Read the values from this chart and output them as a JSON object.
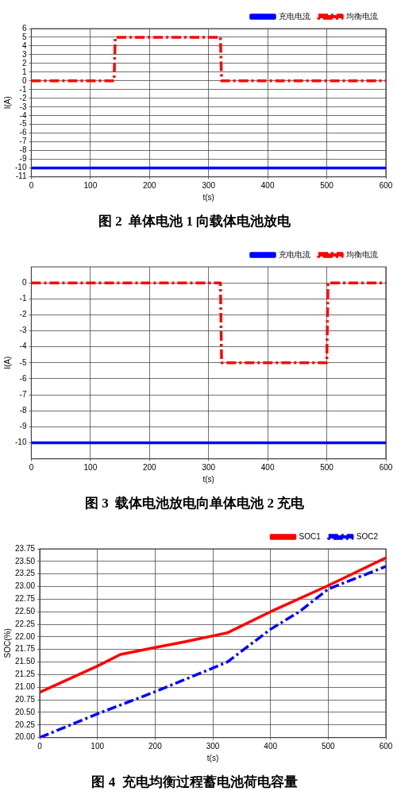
{
  "chart_data": [
    {
      "type": "line",
      "title": "图 2  单体电池 1 向载体电池放电",
      "xlabel": "t(s)",
      "ylabel": "I(A)",
      "xlim": [
        0,
        600
      ],
      "xticks": [
        0,
        100,
        200,
        300,
        400,
        500,
        600
      ],
      "ylim": [
        -11,
        6
      ],
      "yticks": [
        -11,
        -10,
        -9,
        -8,
        -7,
        -6,
        -5,
        -4,
        -3,
        -2,
        -1,
        0,
        1,
        2,
        3,
        4,
        5,
        6
      ],
      "grid": true,
      "legend": "top right",
      "marker": "none",
      "series": [
        {
          "name": "充电电流",
          "color": "#0000ff",
          "line_style": "solid",
          "x": [
            0,
            600
          ],
          "values": [
            -10,
            -10
          ]
        },
        {
          "name": "均衡电流",
          "color": "#ff0000",
          "line_style": "dashed",
          "x": [
            0,
            140,
            142,
            320,
            322,
            600
          ],
          "values": [
            0,
            0,
            5,
            5,
            0,
            0
          ]
        }
      ]
    },
    {
      "type": "line",
      "title": "图 3  载体电池放电向单体电池 2 充电",
      "xlabel": "t(s)",
      "ylabel": "I(A)",
      "xlim": [
        0,
        600
      ],
      "xticks": [
        0,
        100,
        200,
        300,
        400,
        500,
        600
      ],
      "ylim": [
        -11,
        1
      ],
      "yticks": [
        -10,
        -9,
        -8,
        -7,
        -6,
        -5,
        -4,
        -3,
        -2,
        -1,
        0
      ],
      "grid": true,
      "legend": "top right",
      "marker": "none",
      "series": [
        {
          "name": "充电电流",
          "color": "#0000ff",
          "line_style": "solid",
          "x": [
            0,
            600
          ],
          "values": [
            -10,
            -10
          ]
        },
        {
          "name": "均衡电流",
          "color": "#ff0000",
          "line_style": "dashed",
          "x": [
            0,
            320,
            322,
            500,
            502,
            600
          ],
          "values": [
            0,
            0,
            -5,
            -5,
            0,
            0
          ]
        }
      ]
    },
    {
      "type": "line",
      "title": "图 4  充电均衡过程蓄电池荷电容量",
      "xlabel": "t(s)",
      "ylabel": "SOC(%)",
      "xlim": [
        0,
        600
      ],
      "xticks": [
        0,
        100,
        200,
        300,
        400,
        500,
        600
      ],
      "ylim": [
        20,
        23.75
      ],
      "yticks": [
        {
          "value": 20,
          "label": "20.00"
        },
        {
          "value": 20.25,
          "label": "20.25"
        },
        {
          "value": 20.5,
          "label": "20.50"
        },
        {
          "value": 20.75,
          "label": "20.75"
        },
        {
          "value": 21,
          "label": "21.00"
        },
        {
          "value": 21.25,
          "label": "21.25"
        },
        {
          "value": 21.5,
          "label": "21.50"
        },
        {
          "value": 21.75,
          "label": "21.75"
        },
        {
          "value": 22,
          "label": "22.00"
        },
        {
          "value": 22.25,
          "label": "22.25"
        },
        {
          "value": 22.5,
          "label": "22.50"
        },
        {
          "value": 22.75,
          "label": "22.75"
        },
        {
          "value": 23,
          "label": "23.00"
        },
        {
          "value": 23.25,
          "label": "23.25"
        },
        {
          "value": 23.5,
          "label": "23.50"
        },
        {
          "value": 23.75,
          "label": "23.75"
        }
      ],
      "grid": true,
      "legend": "top right",
      "marker": "none",
      "series": [
        {
          "name": "SOC1",
          "color": "#ff0000",
          "line_style": "solid",
          "x": [
            0,
            100,
            140,
            200,
            250,
            300,
            325,
            400,
            500,
            600
          ],
          "values": [
            20.9,
            21.42,
            21.65,
            21.79,
            21.9,
            22.02,
            22.08,
            22.5,
            23.02,
            23.57
          ]
        },
        {
          "name": "SOC2",
          "color": "#0000ff",
          "line_style": "dashed",
          "x": [
            0,
            100,
            200,
            300,
            325,
            400,
            450,
            500,
            600
          ],
          "values": [
            20.0,
            20.47,
            20.91,
            21.38,
            21.5,
            22.15,
            22.5,
            22.95,
            23.4
          ]
        }
      ]
    }
  ]
}
